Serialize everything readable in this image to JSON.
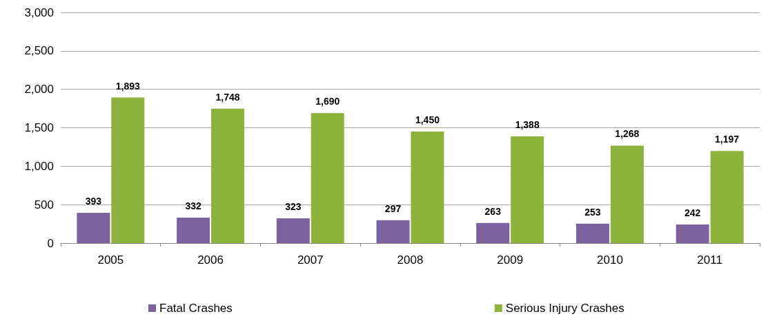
{
  "chart_data": {
    "type": "bar",
    "categories": [
      "2005",
      "2006",
      "2007",
      "2008",
      "2009",
      "2010",
      "2011"
    ],
    "series": [
      {
        "name": "Fatal Crashes",
        "color": "#7b619e",
        "values": [
          393,
          332,
          323,
          297,
          263,
          253,
          242
        ],
        "value_labels": [
          "393",
          "332",
          "323",
          "297",
          "263",
          "253",
          "242"
        ]
      },
      {
        "name": "Serious Injury Crashes",
        "color": "#8db33c",
        "values": [
          1893,
          1748,
          1690,
          1450,
          1388,
          1268,
          1197
        ],
        "value_labels": [
          "1,893",
          "1,748",
          "1,690",
          "1,450",
          "1,388",
          "1,268",
          "1,197"
        ]
      }
    ],
    "ylim": [
      0,
      3000
    ],
    "yticks": [
      {
        "value": 0,
        "label": "0"
      },
      {
        "value": 500,
        "label": "500"
      },
      {
        "value": 1000,
        "label": "1,000"
      },
      {
        "value": 1500,
        "label": "1,500"
      },
      {
        "value": 2000,
        "label": "2,000"
      },
      {
        "value": 2500,
        "label": "2,500"
      },
      {
        "value": 3000,
        "label": "3,000"
      }
    ],
    "grid": "y",
    "legend": "bottom"
  }
}
